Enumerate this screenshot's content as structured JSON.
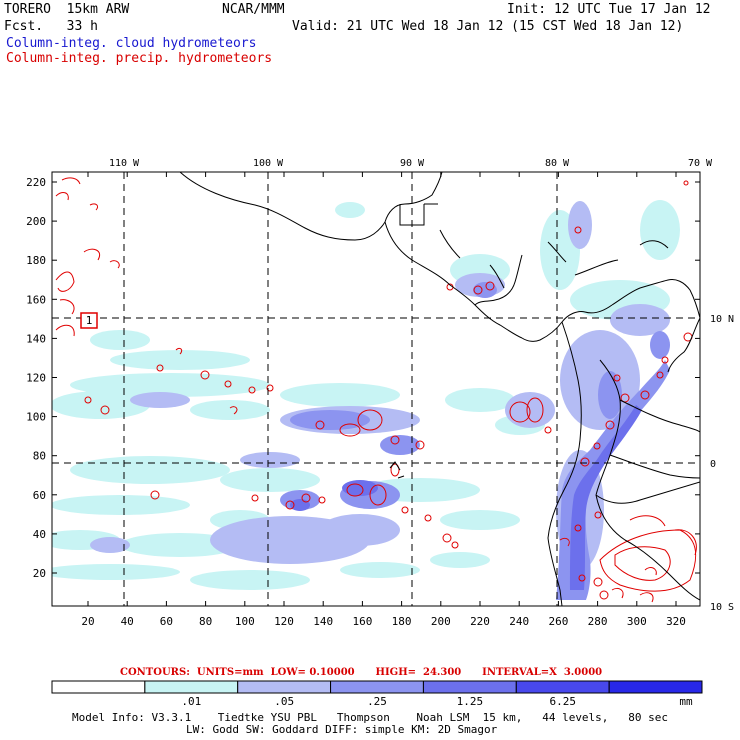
{
  "header": {
    "model": "TORERO  15km ARW",
    "forecast": "Fcst.   33 h",
    "org": "NCAR/MMM",
    "init": "Init: 12 UTC Tue 17 Jan 12",
    "valid": "Valid: 21 UTC Wed 18 Jan 12 (15 CST Wed 18 Jan 12)",
    "field_cloud": "Column-integ. cloud hydrometeors",
    "field_precip": "Column-integ. precip. hydrometeors"
  },
  "map": {
    "lon_labels": [
      "110 W",
      "100 W",
      "90 W",
      "80 W",
      "70 W"
    ],
    "lat_labels": [
      "10 N",
      "0",
      "10 S"
    ],
    "y_ticks": [
      "20",
      "40",
      "60",
      "80",
      "100",
      "120",
      "140",
      "160",
      "180",
      "200",
      "220"
    ],
    "x_ticks": [
      "20",
      "40",
      "60",
      "80",
      "100",
      "120",
      "140",
      "160",
      "180",
      "200",
      "220",
      "240",
      "260",
      "280",
      "300",
      "320"
    ],
    "station_label": "1",
    "colors": {
      "cloud_light": "#c8f4f4",
      "cloud_1": "#b4bcf4",
      "cloud_2": "#8c94f0",
      "cloud_3": "#6c70ec",
      "cloud_4": "#4848ec",
      "cloud_5": "#2828e8",
      "precip_contour": "#e00000",
      "coast": "#000000"
    }
  },
  "contours_info": {
    "label": "CONTOURS:  UNITS=mm  LOW= 0.10000      HIGH=  24.300      INTERVAL=X  3.0000"
  },
  "colorbar": {
    "labels": [
      ".01",
      ".05",
      ".25",
      "1.25",
      "6.25"
    ],
    "unit": "mm",
    "colors": [
      "#ffffff",
      "#c8f4f4",
      "#b4bcf4",
      "#8c94f0",
      "#6c70ec",
      "#4848ec",
      "#2828e8"
    ]
  },
  "footer": {
    "line1": "Model Info: V3.3.1    Tiedtke YSU PBL   Thompson    Noah LSM  15 km,   44 levels,   80 sec",
    "line2": "LW: Godd SW: Goddard DIFF: simple KM: 2D Smagor"
  }
}
